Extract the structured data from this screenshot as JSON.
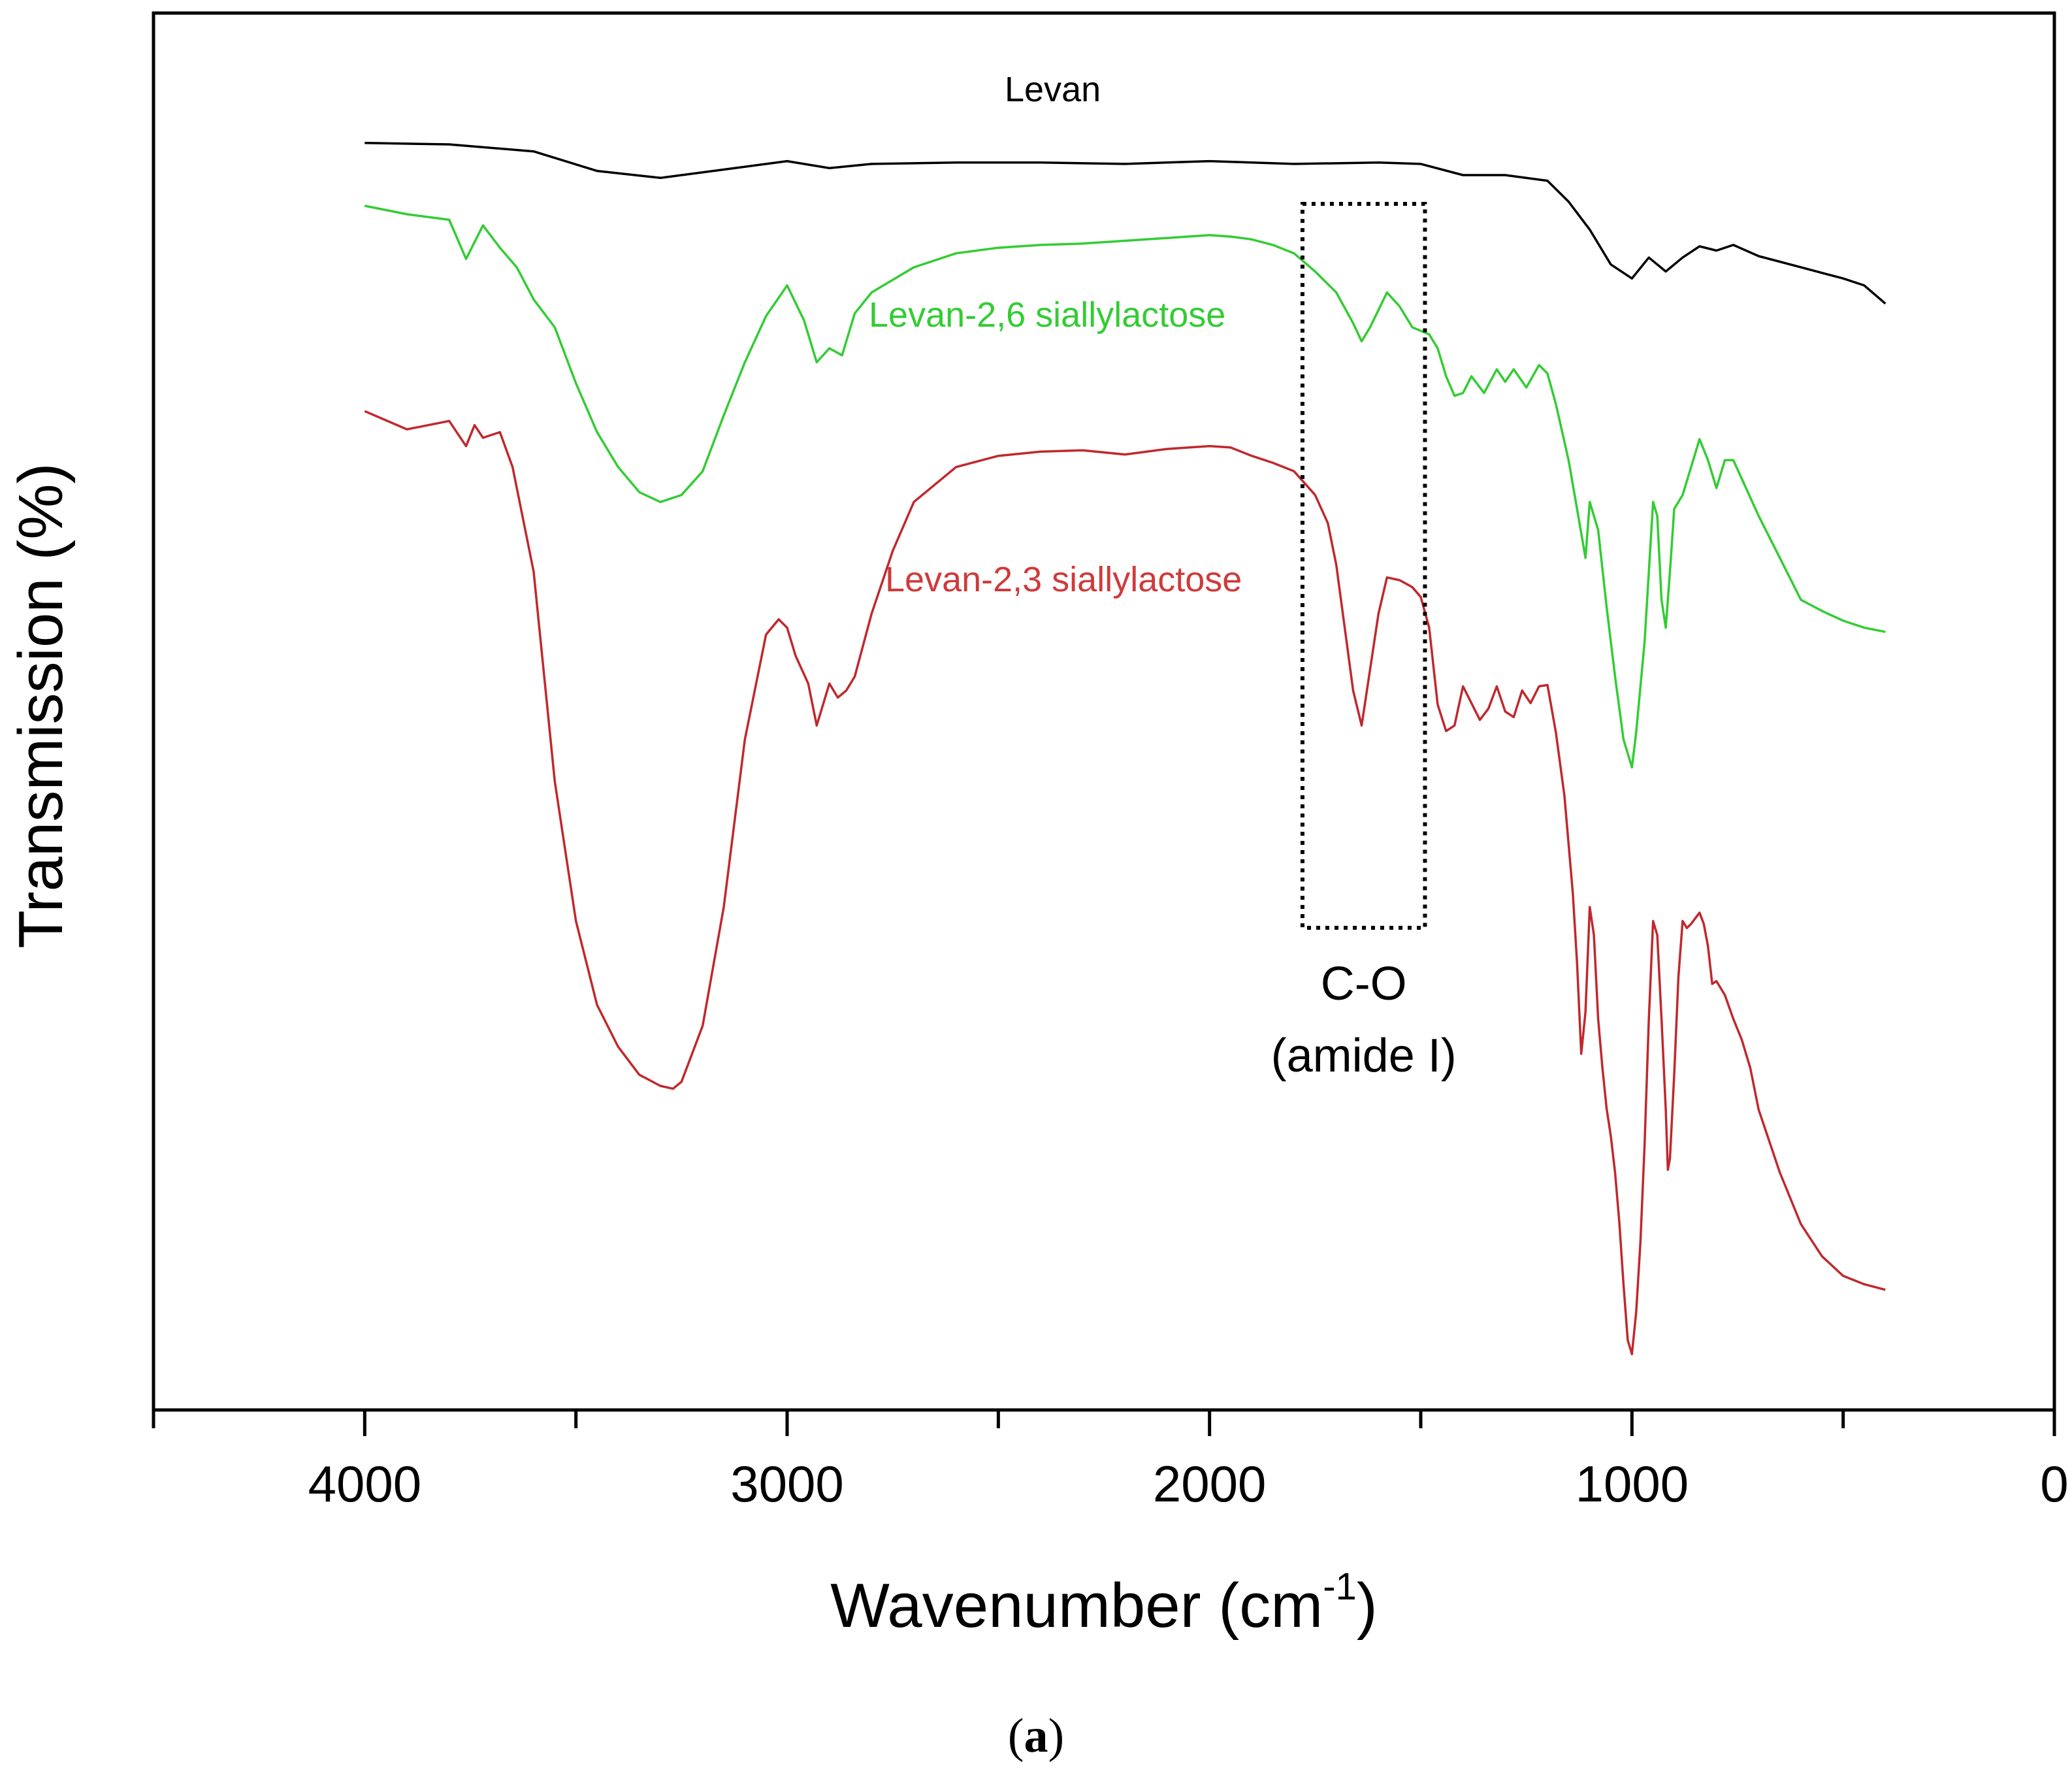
{
  "chart_data": {
    "type": "line",
    "title": "",
    "xlabel": "Wavenumber (cm",
    "xlabel_sup": "-1",
    "xlabel_end": ")",
    "ylabel": "Transmission (%)",
    "xlim": [
      4500,
      0
    ],
    "ylim": [
      0,
      100
    ],
    "x_reversed": true,
    "xticks": [
      4000,
      3000,
      2000,
      1000,
      0
    ],
    "yticks_shown": false,
    "series": [
      {
        "name": "Levan",
        "color": "#000000",
        "label_color": "#000000",
        "x": [
          4000,
          3800,
          3600,
          3450,
          3300,
          3150,
          3000,
          2900,
          2800,
          2600,
          2400,
          2200,
          2000,
          1800,
          1600,
          1500,
          1400,
          1300,
          1200,
          1150,
          1100,
          1050,
          1000,
          960,
          920,
          880,
          840,
          800,
          760,
          700,
          600,
          500,
          450,
          400
        ],
        "y": [
          90.7,
          90.6,
          90.1,
          88.7,
          88.2,
          88.8,
          89.4,
          88.9,
          89.2,
          89.3,
          89.3,
          89.2,
          89.4,
          89.2,
          89.3,
          89.2,
          88.4,
          88.4,
          88.0,
          86.5,
          84.5,
          82.0,
          81.0,
          82.5,
          81.5,
          82.5,
          83.3,
          83.0,
          83.4,
          82.6,
          81.8,
          81.0,
          80.5,
          79.2
        ]
      },
      {
        "name": "Levan-2,6 siallylactose",
        "color": "#33cc33",
        "label_color": "#33cc33",
        "x": [
          4000,
          3900,
          3800,
          3760,
          3720,
          3680,
          3640,
          3600,
          3550,
          3500,
          3450,
          3400,
          3350,
          3300,
          3250,
          3200,
          3150,
          3100,
          3050,
          3000,
          2960,
          2930,
          2900,
          2870,
          2840,
          2800,
          2700,
          2600,
          2500,
          2400,
          2300,
          2200,
          2100,
          2000,
          1950,
          1900,
          1850,
          1800,
          1750,
          1700,
          1660,
          1640,
          1620,
          1580,
          1550,
          1520,
          1480,
          1460,
          1440,
          1420,
          1400,
          1380,
          1350,
          1320,
          1300,
          1280,
          1250,
          1220,
          1200,
          1180,
          1150,
          1130,
          1110,
          1100,
          1080,
          1060,
          1040,
          1020,
          1000,
          990,
          970,
          950,
          940,
          930,
          920,
          910,
          900,
          880,
          860,
          840,
          820,
          800,
          780,
          760,
          730,
          700,
          650,
          600,
          550,
          500,
          450,
          400
        ],
        "y": [
          86.2,
          85.6,
          85.2,
          82.4,
          84.8,
          83.2,
          81.8,
          79.5,
          77.5,
          73.5,
          70.0,
          67.5,
          65.7,
          65.0,
          65.5,
          67.2,
          71.2,
          75.0,
          78.3,
          80.5,
          78.0,
          75.0,
          76.0,
          75.5,
          78.5,
          80.0,
          81.8,
          82.8,
          83.2,
          83.4,
          83.5,
          83.7,
          83.9,
          84.1,
          84.0,
          83.8,
          83.4,
          82.8,
          81.5,
          80.0,
          77.8,
          76.5,
          77.5,
          80.0,
          79.0,
          77.5,
          77.0,
          76.0,
          74.0,
          72.6,
          72.8,
          74.0,
          72.8,
          74.5,
          73.6,
          74.5,
          73.2,
          74.8,
          74.2,
          72.0,
          68.0,
          64.5,
          61.0,
          65.0,
          63.0,
          57.5,
          52.5,
          48.0,
          46.0,
          48.5,
          55.0,
          65.0,
          64.0,
          58.0,
          56.0,
          60.0,
          64.5,
          65.5,
          67.5,
          69.5,
          68.0,
          66.0,
          68.0,
          68.0,
          66.0,
          64.0,
          61.0,
          58.0,
          57.2,
          56.5,
          56.0,
          55.7
        ]
      },
      {
        "name": "Levan-2,3 siallylactose",
        "color": "#c0282d",
        "label_color": "#d03a3a",
        "x": [
          4000,
          3900,
          3800,
          3760,
          3740,
          3720,
          3680,
          3650,
          3600,
          3550,
          3500,
          3450,
          3400,
          3350,
          3300,
          3270,
          3250,
          3200,
          3150,
          3100,
          3050,
          3020,
          3000,
          2980,
          2950,
          2930,
          2900,
          2880,
          2860,
          2840,
          2800,
          2750,
          2700,
          2600,
          2500,
          2400,
          2300,
          2200,
          2100,
          2000,
          1950,
          1900,
          1850,
          1800,
          1750,
          1720,
          1700,
          1680,
          1660,
          1640,
          1620,
          1600,
          1580,
          1550,
          1520,
          1500,
          1480,
          1460,
          1440,
          1420,
          1400,
          1380,
          1360,
          1340,
          1320,
          1300,
          1280,
          1260,
          1240,
          1220,
          1200,
          1180,
          1160,
          1140,
          1130,
          1120,
          1110,
          1100,
          1090,
          1080,
          1070,
          1060,
          1050,
          1040,
          1030,
          1020,
          1010,
          1000,
          990,
          980,
          970,
          960,
          950,
          940,
          930,
          920,
          915,
          910,
          900,
          890,
          880,
          870,
          860,
          850,
          840,
          830,
          820,
          810,
          800,
          780,
          760,
          740,
          720,
          700,
          650,
          600,
          550,
          500,
          450,
          400
        ],
        "y": [
          71.5,
          70.2,
          70.8,
          69.0,
          70.5,
          69.6,
          70.0,
          67.5,
          60.0,
          45.0,
          35.0,
          29.0,
          26.0,
          24.0,
          23.2,
          23.0,
          23.5,
          27.5,
          36.0,
          48.0,
          55.5,
          56.6,
          56.0,
          54.0,
          52.0,
          49.0,
          52.0,
          51.0,
          51.5,
          52.5,
          57.0,
          61.5,
          65.0,
          67.5,
          68.3,
          68.6,
          68.7,
          68.4,
          68.8,
          69.0,
          68.9,
          68.3,
          67.8,
          67.2,
          65.5,
          63.5,
          60.5,
          56.0,
          51.5,
          49.0,
          53.0,
          57.0,
          59.6,
          59.4,
          58.9,
          58.2,
          56.0,
          50.5,
          48.6,
          49.0,
          51.8,
          50.6,
          49.4,
          50.2,
          51.8,
          50.0,
          49.6,
          51.5,
          50.6,
          51.8,
          51.9,
          48.5,
          44.0,
          37.0,
          32.0,
          25.5,
          28.5,
          36.0,
          34.0,
          28.0,
          24.5,
          21.6,
          19.6,
          17.0,
          13.5,
          9.0,
          5.0,
          4.0,
          7.0,
          12.0,
          19.0,
          28.0,
          35.0,
          34.0,
          28.0,
          21.5,
          17.2,
          18.0,
          24.0,
          31.0,
          35.0,
          34.5,
          34.8,
          35.2,
          35.6,
          34.8,
          33.2,
          30.5,
          30.7,
          29.7,
          28.0,
          26.5,
          24.5,
          21.5,
          17.0,
          13.3,
          11.0,
          9.6,
          9.0,
          8.6
        ]
      }
    ],
    "annotations": [
      {
        "text": "C-O",
        "x_range": [
          1780,
          1490
        ]
      },
      {
        "text": "(amide I)",
        "x_range": [
          1780,
          1490
        ]
      }
    ]
  },
  "caption": {
    "open": "(",
    "letter": "a",
    "close": ")"
  }
}
